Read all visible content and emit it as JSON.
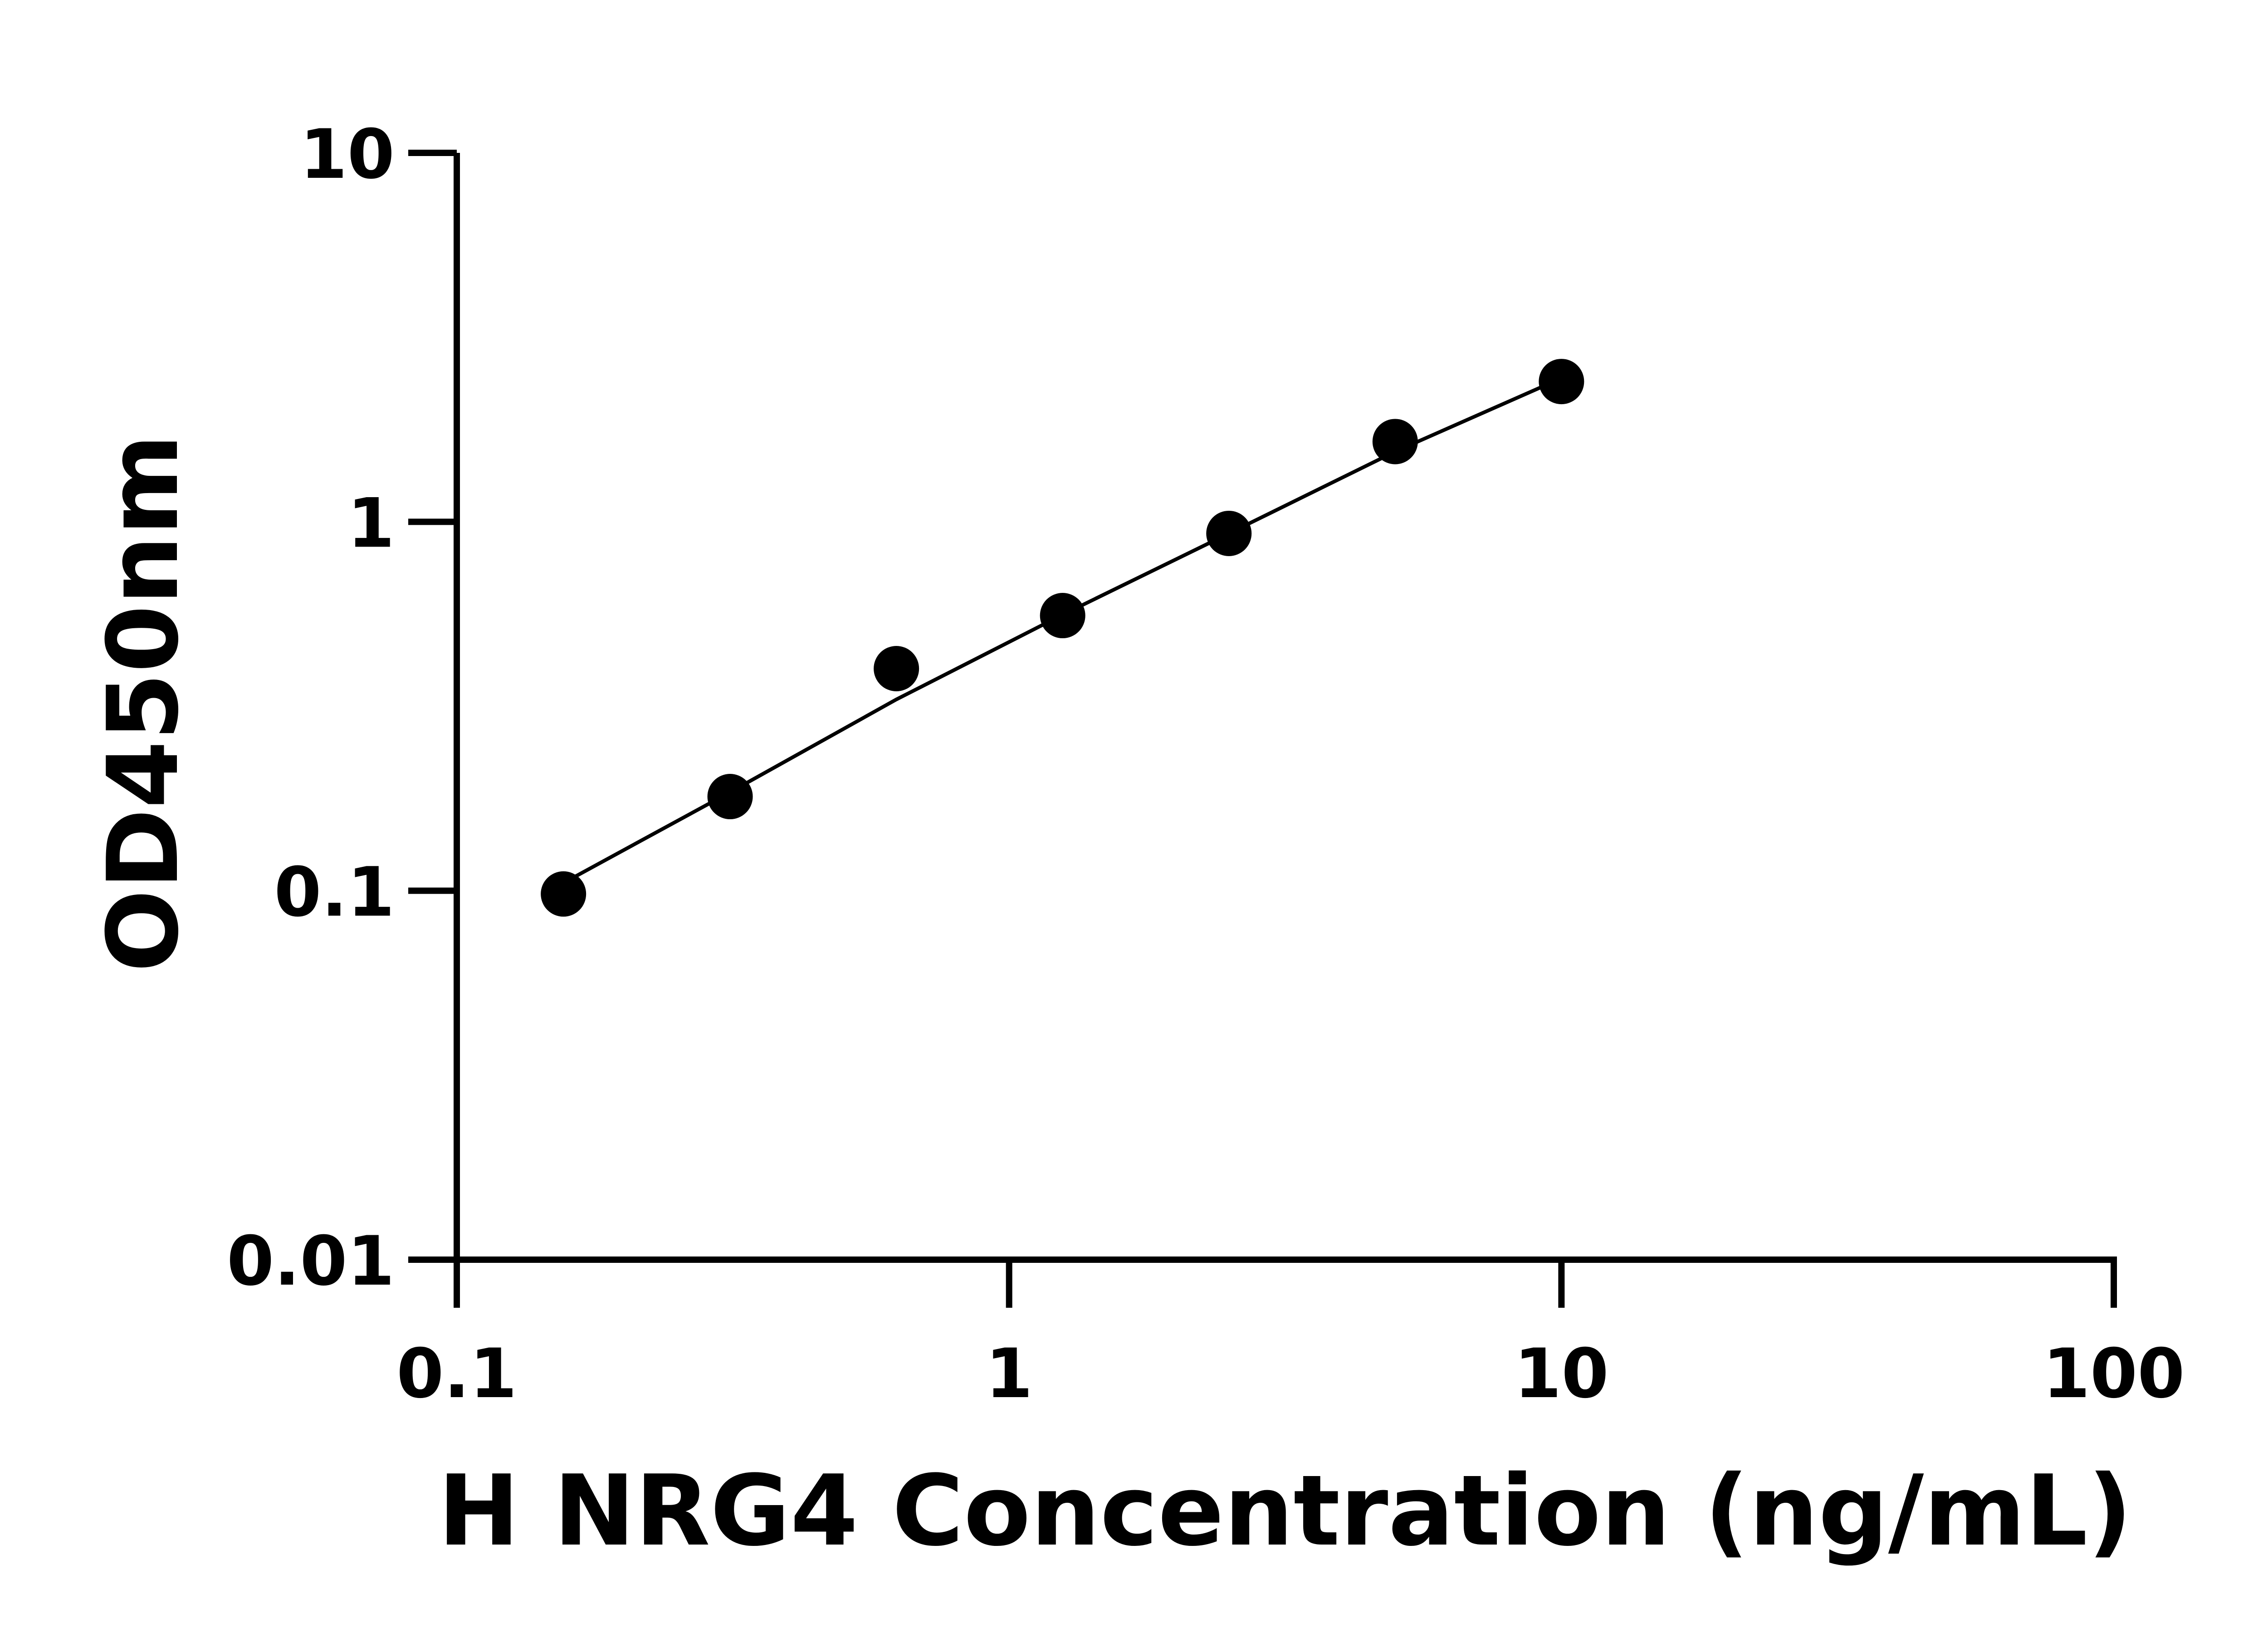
{
  "chart_data": {
    "type": "scatter",
    "title": "",
    "xlabel": "H NRG4 Concentration (ng/mL)",
    "ylabel": "OD450nm",
    "xscale": "log",
    "yscale": "log",
    "xlim": [
      0.1,
      100
    ],
    "ylim": [
      0.01,
      10
    ],
    "xticks": [
      "0.1",
      "1",
      "10",
      "100"
    ],
    "yticks": [
      "0.01",
      "0.1",
      "1",
      "10"
    ],
    "grid": false,
    "series": [
      {
        "x": [
          0.156,
          0.3125,
          0.625,
          1.25,
          2.5,
          5,
          10
        ],
        "y": [
          0.098,
          0.18,
          0.4,
          0.557,
          0.93,
          1.65,
          2.4
        ],
        "marker": "circle",
        "color": "#000000"
      }
    ],
    "fit_curve": {
      "x": [
        0.156,
        0.3125,
        0.625,
        1.25,
        2.5,
        5,
        10
      ],
      "y": [
        0.105,
        0.185,
        0.33,
        0.56,
        0.93,
        1.55,
        2.45
      ],
      "color": "#000000"
    }
  }
}
